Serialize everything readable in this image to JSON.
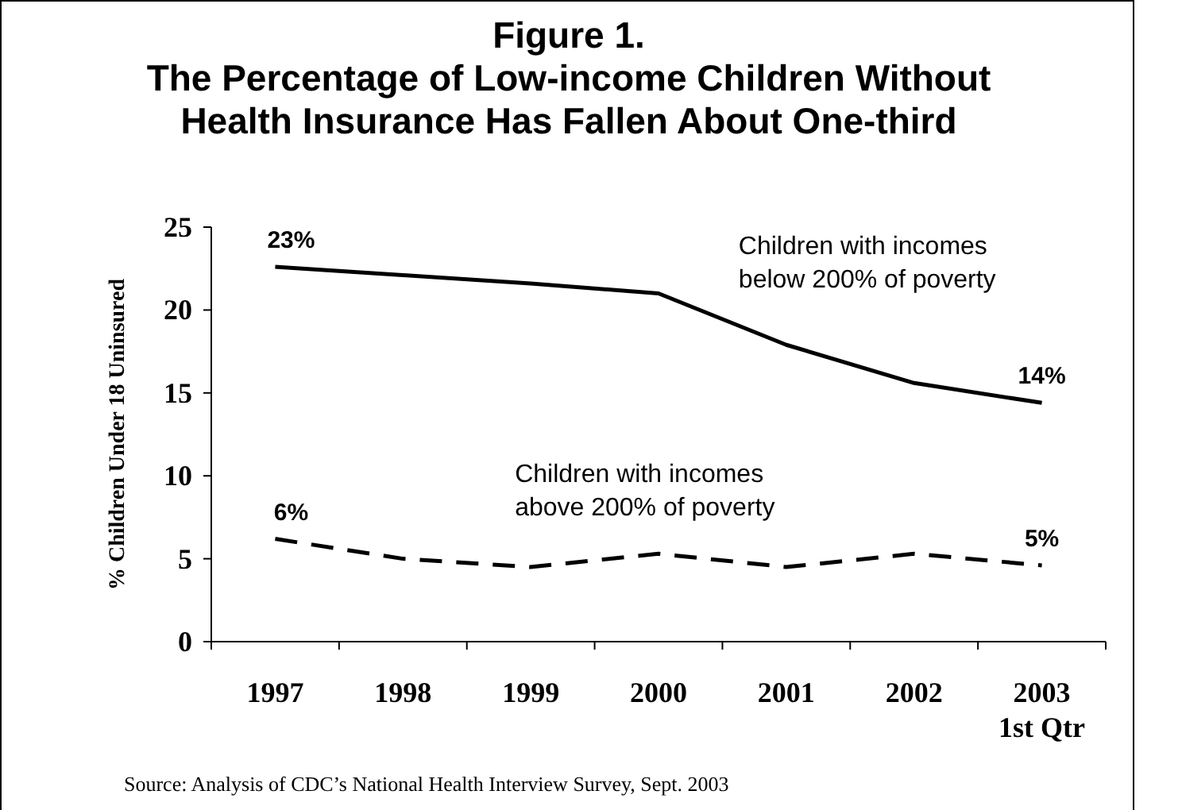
{
  "chart_data": {
    "type": "line",
    "title": "Figure 1.\nThe Percentage of Low-income Children Without\nHealth Insurance Has Fallen About One-third",
    "ylabel": "% Children Under 18 Uninsured",
    "categories": [
      "1997",
      "1998",
      "1999",
      "2000",
      "2001",
      "2002",
      "2003\n1st Qtr"
    ],
    "series": [
      {
        "name": "Children with incomes\nbelow 200% of poverty",
        "color": "#000000",
        "line_style": "solid",
        "values": [
          22.6,
          22.1,
          21.6,
          21.0,
          17.9,
          15.6,
          14.4
        ],
        "value_labels": [
          "23%",
          null,
          null,
          null,
          null,
          null,
          "14%"
        ]
      },
      {
        "name": "Children with incomes\nabove 200% of poverty",
        "color": "#000000",
        "line_style": "dashed",
        "values": [
          6.2,
          5.0,
          4.5,
          5.3,
          4.5,
          5.3,
          4.6
        ],
        "value_labels": [
          "6%",
          null,
          null,
          null,
          null,
          null,
          "5%"
        ]
      }
    ],
    "ylim": [
      0,
      25
    ],
    "yticks": [
      0,
      5,
      10,
      15,
      20,
      25
    ],
    "grid": false,
    "marker": "none",
    "annotations": [
      "Source:  Analysis of CDC’s National Health Interview Survey, Sept. 2003"
    ]
  }
}
